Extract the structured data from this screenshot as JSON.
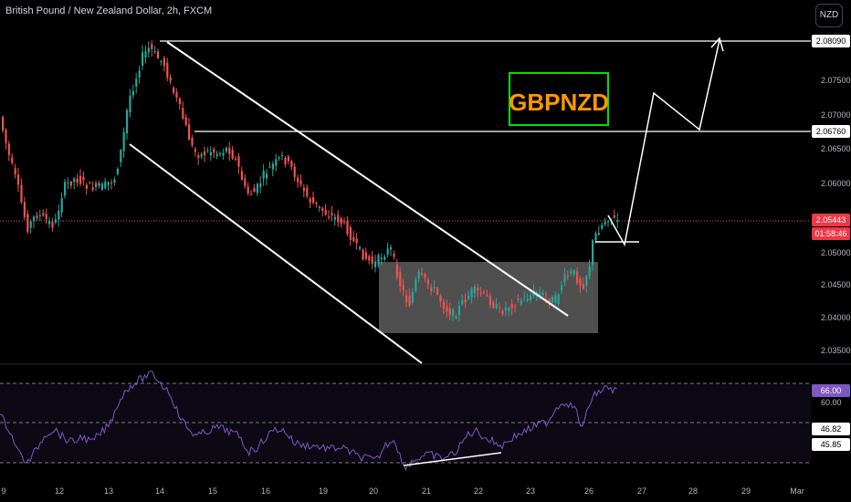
{
  "header": {
    "title": "British Pound / New Zealand Dollar, 2h, FXCM",
    "currency": "NZD"
  },
  "annotation": {
    "text": "GBPNZD"
  },
  "chart_data": {
    "type": "candlestick",
    "price_axis": {
      "ticks": [
        "2.08090",
        "2.07500",
        "2.07000",
        "2.06760",
        "2.06500",
        "2.06000",
        "2.05443",
        "01:58:46",
        "2.05000",
        "2.04500",
        "2.04000",
        "2.03500"
      ],
      "boxed": [
        {
          "label": "2.08090",
          "style": "white"
        },
        {
          "label": "2.06760",
          "style": "white"
        },
        {
          "label": "2.05443",
          "style": "red"
        },
        {
          "label": "01:58:46",
          "style": "red"
        }
      ]
    },
    "x_axis": {
      "ticks": [
        "9",
        "12",
        "13",
        "14",
        "15",
        "16",
        "19",
        "20",
        "21",
        "22",
        "23",
        "26",
        "27",
        "28",
        "29",
        "Mar"
      ]
    },
    "rsi": {
      "ticks": [
        "66.00",
        "60.00",
        "46.82",
        "45.85"
      ],
      "boxed": [
        {
          "label": "66.00",
          "style": "purple"
        },
        {
          "label": "46.82",
          "style": "white"
        },
        {
          "label": "45.85",
          "style": "white"
        }
      ]
    },
    "colors": {
      "up": "#26a69a",
      "down": "#ef5350",
      "rsi": "#7e57c2",
      "lines": "#ffffff",
      "zone": "#5d5d5d",
      "annotation_text": "#ff9800",
      "annotation_border": "#00e000"
    }
  }
}
